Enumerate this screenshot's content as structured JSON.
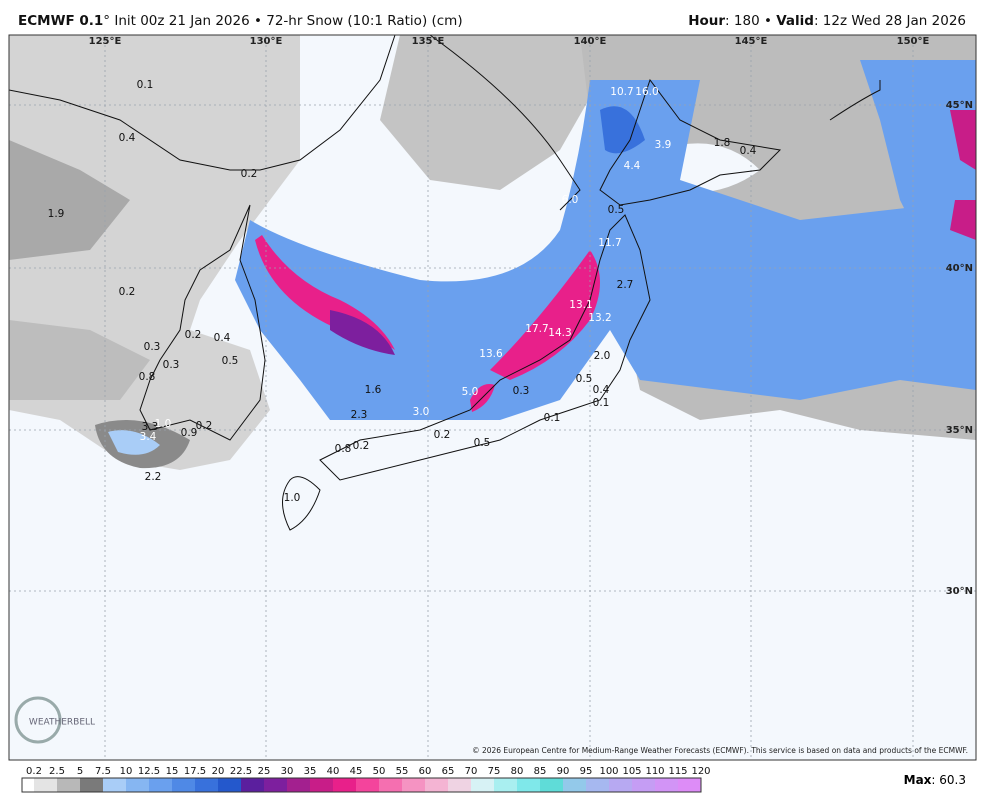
{
  "header": {
    "title_bold": "ECMWF 0.1",
    "title_rest": "° Init 00z 21 Jan 2026 • 72-hr Snow (10:1 Ratio) (cm)",
    "hour_label": "Hour",
    "hour_rest": ": 180 • ",
    "valid_label": "Valid",
    "valid_rest": ": 12z Wed 28 Jan 2026"
  },
  "map": {
    "lon_labels": [
      "125°E",
      "130°E",
      "135°E",
      "140°E",
      "145°E",
      "150°E"
    ],
    "lat_labels": [
      "45°N",
      "40°N",
      "35°N",
      "30°N"
    ],
    "point_labels": [
      "0.1",
      "0.4",
      "1.9",
      "0.2",
      "0.2",
      "0.2",
      "0.4",
      "0.3",
      "0.5",
      "0.3",
      "0.8",
      "3.3",
      "1.0",
      "3.4",
      "0.9",
      "0.2",
      "2.2",
      "1.0",
      "0.8",
      "0.2",
      "2.3",
      "1.6",
      "3.0",
      "0.2",
      "0.5",
      "5.0",
      "13.6",
      "0.3",
      "17.7",
      "14.3",
      "13.1",
      "13.2",
      "0.1",
      "2.0",
      "0.5",
      "0.4",
      "0.1",
      "2.7",
      "11.7",
      "0.5",
      "6.0",
      "4.4",
      "3.9",
      "10.7",
      "16.0",
      "1.8",
      "0.4"
    ],
    "copyright": "© 2026 European Centre for Medium-Range Weather Forecasts (ECMWF). This service is based on data and products of the ECMWF.",
    "logo": "WEATHERBELL"
  },
  "legend": {
    "labels": [
      "0.2",
      "2.5",
      "5",
      "7.5",
      "10",
      "12.5",
      "15",
      "17.5",
      "20",
      "22.5",
      "25",
      "30",
      "35",
      "40",
      "45",
      "50",
      "55",
      "60",
      "65",
      "70",
      "75",
      "80",
      "85",
      "90",
      "95",
      "100",
      "105",
      "110",
      "115",
      "120"
    ],
    "colors": [
      "#e4e4e4",
      "#b8b8b8",
      "#7a7a7a",
      "#a9cdf7",
      "#86b6f2",
      "#6aa0ee",
      "#4f89e6",
      "#3871dc",
      "#2458cc",
      "#5b1f9e",
      "#7d1f9e",
      "#a3208f",
      "#c81d88",
      "#e8208a",
      "#f4449c",
      "#f56fb0",
      "#f593c2",
      "#f4b4d3",
      "#efd3e3",
      "#d7f2f5",
      "#a9eff0",
      "#7fe8ea",
      "#5fdcd8",
      "#93c9ea",
      "#a6b8f0",
      "#b7a9f2",
      "#c59df4",
      "#d294f6",
      "#dd8cf7"
    ],
    "max_label": "Max",
    "max_value": "60.3"
  }
}
